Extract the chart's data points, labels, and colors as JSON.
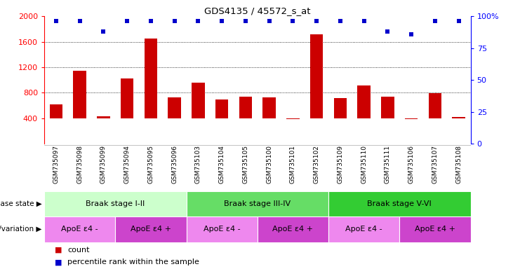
{
  "title": "GDS4135 / 45572_s_at",
  "samples": [
    "GSM735097",
    "GSM735098",
    "GSM735099",
    "GSM735094",
    "GSM735095",
    "GSM735096",
    "GSM735103",
    "GSM735104",
    "GSM735105",
    "GSM735100",
    "GSM735101",
    "GSM735102",
    "GSM735109",
    "GSM735110",
    "GSM735111",
    "GSM735106",
    "GSM735107",
    "GSM735108"
  ],
  "bar_values": [
    620,
    1150,
    430,
    1020,
    1650,
    730,
    960,
    700,
    740,
    730,
    390,
    1720,
    720,
    920,
    740,
    390,
    790,
    420
  ],
  "percentile_values": [
    96,
    96,
    88,
    96,
    96,
    96,
    96,
    96,
    96,
    96,
    96,
    96,
    96,
    96,
    88,
    86,
    96,
    96
  ],
  "bar_color": "#cc0000",
  "dot_color": "#0000cc",
  "ylim_left": [
    0,
    2000
  ],
  "ylim_right": [
    0,
    100
  ],
  "yticks_left": [
    400,
    800,
    1200,
    1600,
    2000
  ],
  "yticks_right": [
    0,
    25,
    50,
    75,
    100
  ],
  "grid_values": [
    800,
    1200,
    1600
  ],
  "disease_state_groups": [
    {
      "label": "Braak stage I-II",
      "start": 0,
      "end": 6,
      "color": "#ccffcc"
    },
    {
      "label": "Braak stage III-IV",
      "start": 6,
      "end": 12,
      "color": "#66dd66"
    },
    {
      "label": "Braak stage V-VI",
      "start": 12,
      "end": 18,
      "color": "#33cc33"
    }
  ],
  "genotype_groups": [
    {
      "label": "ApoE ε4 -",
      "start": 0,
      "end": 3,
      "color": "#ee88ee"
    },
    {
      "label": "ApoE ε4 +",
      "start": 3,
      "end": 6,
      "color": "#cc44cc"
    },
    {
      "label": "ApoE ε4 -",
      "start": 6,
      "end": 9,
      "color": "#ee88ee"
    },
    {
      "label": "ApoE ε4 +",
      "start": 9,
      "end": 12,
      "color": "#cc44cc"
    },
    {
      "label": "ApoE ε4 -",
      "start": 12,
      "end": 15,
      "color": "#ee88ee"
    },
    {
      "label": "ApoE ε4 +",
      "start": 15,
      "end": 18,
      "color": "#cc44cc"
    }
  ],
  "legend_count_color": "#cc0000",
  "legend_dot_color": "#0000cc",
  "label_disease_state": "disease state",
  "label_genotype": "genotype/variation",
  "label_count": "count",
  "label_percentile": "percentile rank within the sample",
  "yoffset": 400
}
